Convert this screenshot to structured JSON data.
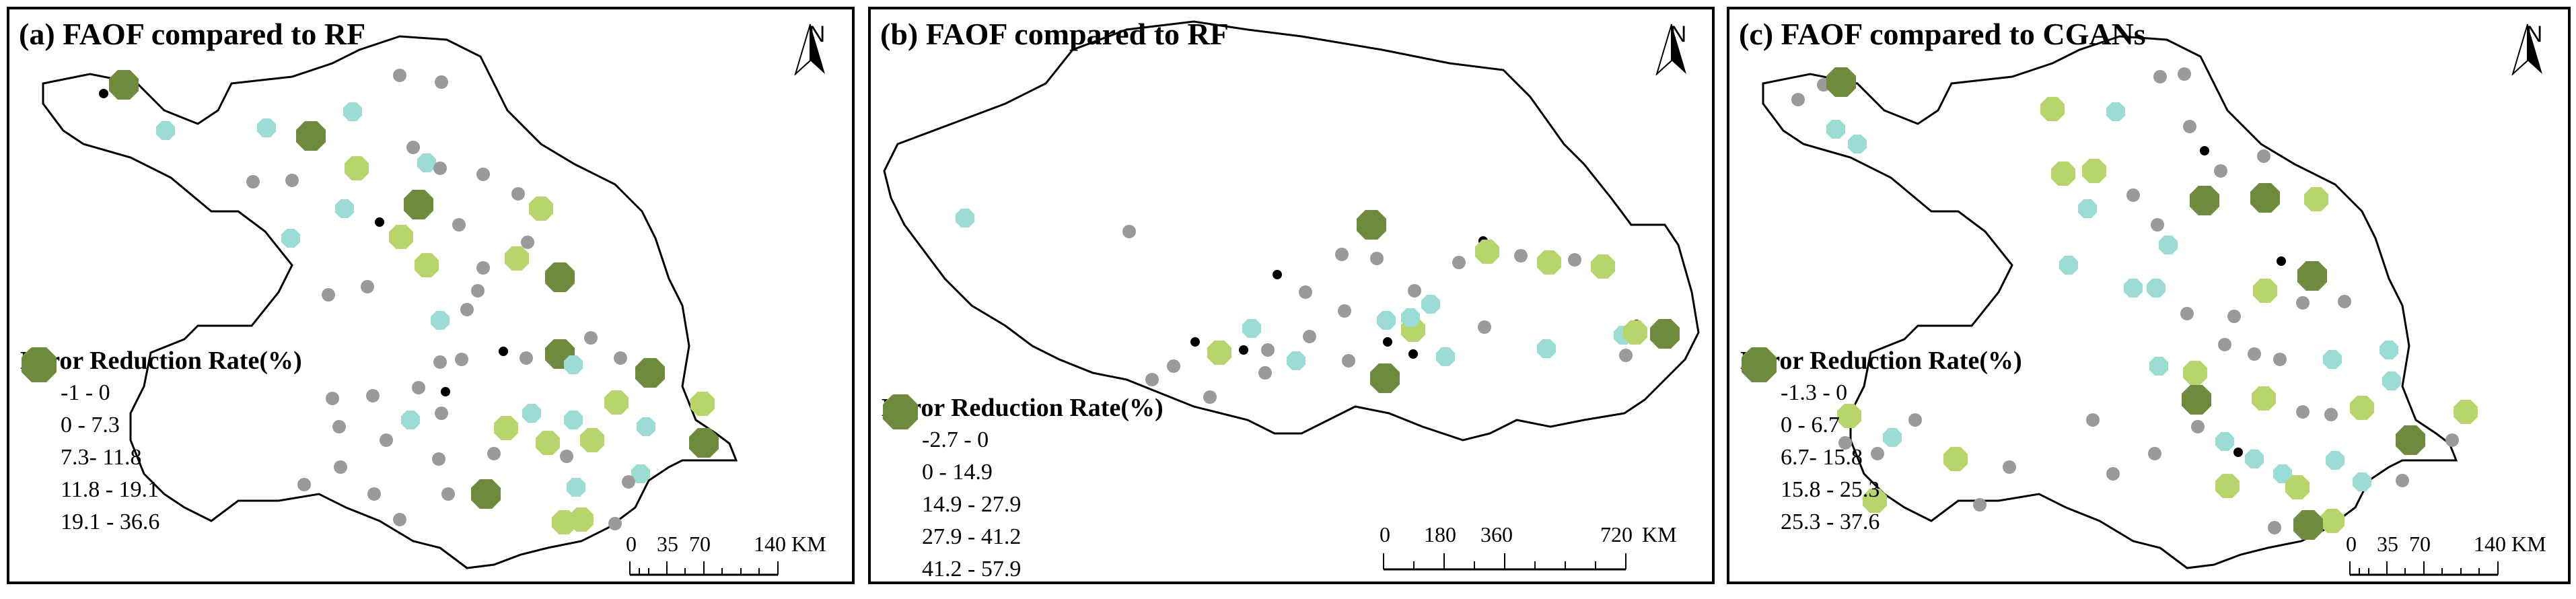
{
  "colors": {
    "black": "#000000",
    "gray": "#9a9a9a",
    "teal": "#9bdcd4",
    "lightgreen": "#b7d56a",
    "darkgreen": "#6e8a3d",
    "outline": "#000000"
  },
  "panels": [
    {
      "id": "a",
      "title": "(a) FAOF compared to RF",
      "north_label": "N",
      "legend": {
        "title": "Error Reduction Rate(%)",
        "classes": [
          {
            "label": "-1 - 0",
            "symbol": "black-dot"
          },
          {
            "label": "0 - 7.3",
            "symbol": "gray-dot"
          },
          {
            "label": "7.3- 11.8",
            "symbol": "teal-octagon"
          },
          {
            "label": "11.8 - 19.1",
            "symbol": "lightgreen-octagon"
          },
          {
            "label": "19.1 - 36.6",
            "symbol": "darkgreen-octagon"
          }
        ]
      },
      "scale_bar": {
        "ticks": [
          "0",
          "35",
          "70",
          "140"
        ],
        "unit": "KM"
      }
    },
    {
      "id": "b",
      "title": "(b) FAOF compared to RF",
      "north_label": "N",
      "legend": {
        "title": "Error Reduction Rate(%)",
        "classes": [
          {
            "label": "-2.7 - 0",
            "symbol": "black-dot"
          },
          {
            "label": "0 - 14.9",
            "symbol": "gray-dot"
          },
          {
            "label": "14.9 - 27.9",
            "symbol": "teal-octagon"
          },
          {
            "label": "27.9 - 41.2",
            "symbol": "lightgreen-octagon"
          },
          {
            "label": "41.2 - 57.9",
            "symbol": "darkgreen-octagon"
          }
        ]
      },
      "scale_bar": {
        "ticks": [
          "0",
          "180",
          "360",
          "720"
        ],
        "unit": "KM"
      }
    },
    {
      "id": "c",
      "title": "(c) FAOF compared to CGANs",
      "north_label": "N",
      "legend": {
        "title": "Error Reduction Rate(%)",
        "classes": [
          {
            "label": "-1.3 - 0",
            "symbol": "black-dot"
          },
          {
            "label": "0 - 6.7",
            "symbol": "gray-dot"
          },
          {
            "label": "6.7- 15.8",
            "symbol": "teal-octagon"
          },
          {
            "label": "15.8 - 25.3",
            "symbol": "lightgreen-octagon"
          },
          {
            "label": "25.3 - 37.6",
            "symbol": "darkgreen-octagon"
          }
        ]
      },
      "scale_bar": {
        "ticks": [
          "0",
          "35",
          "70",
          "140"
        ],
        "unit": "KM"
      }
    }
  ]
}
